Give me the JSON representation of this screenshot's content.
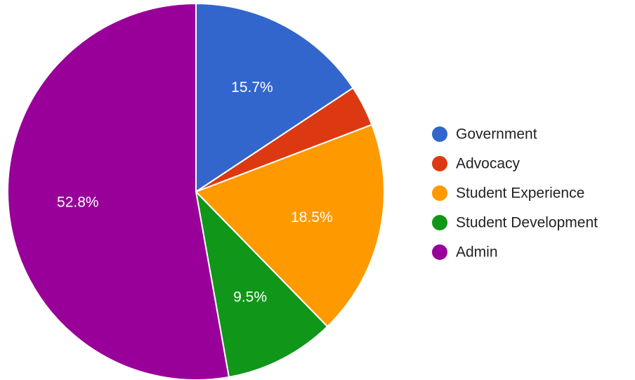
{
  "chart_data": {
    "type": "pie",
    "title": "",
    "legend_position": "right",
    "slices": [
      {
        "label": "Government",
        "value": 15.7,
        "display": "15.7%",
        "color": "#3366cc"
      },
      {
        "label": "Advocacy",
        "value": 3.5,
        "display": "",
        "color": "#dc3912"
      },
      {
        "label": "Student Experience",
        "value": 18.5,
        "display": "18.5%",
        "color": "#ff9900"
      },
      {
        "label": "Student Development",
        "value": 9.5,
        "display": "9.5%",
        "color": "#109618"
      },
      {
        "label": "Admin",
        "value": 52.8,
        "display": "52.8%",
        "color": "#990099"
      }
    ]
  }
}
